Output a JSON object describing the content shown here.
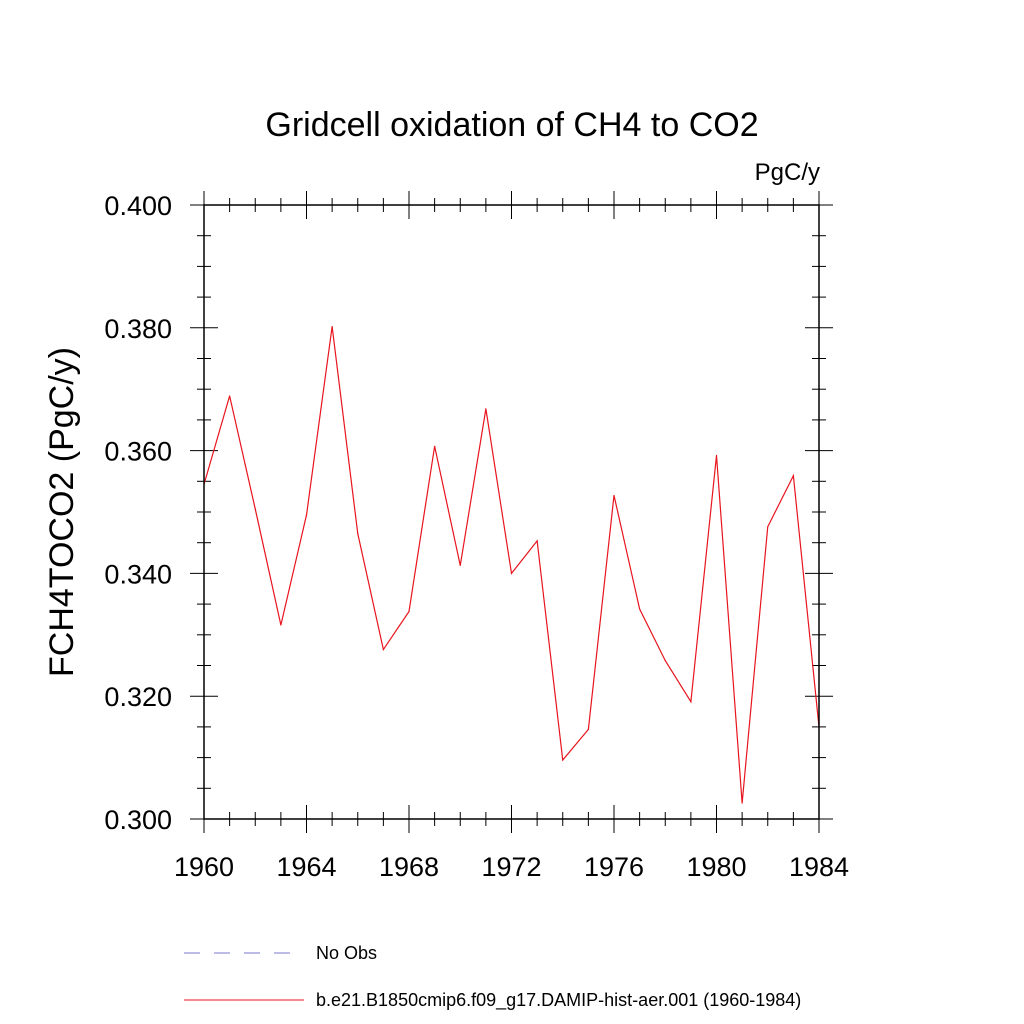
{
  "chart_data": {
    "type": "line",
    "title": "Gridcell oxidation of CH4 to CO2",
    "units_label": "PgC/y",
    "ylabel": "FCH4TOCO2  (PgC/y)",
    "xlabel": "",
    "xlim": [
      1960,
      1984
    ],
    "ylim": [
      0.3,
      0.4
    ],
    "x_ticks": [
      1960,
      1964,
      1968,
      1972,
      1976,
      1980,
      1984
    ],
    "x_tick_labels": [
      "1960",
      "1964",
      "1968",
      "1972",
      "1976",
      "1980",
      "1984"
    ],
    "y_ticks": [
      0.3,
      0.32,
      0.34,
      0.36,
      0.38,
      0.4
    ],
    "y_tick_labels": [
      "0.300",
      "0.320",
      "0.340",
      "0.360",
      "0.380",
      "0.400"
    ],
    "grid": false,
    "legend_position": "bottom",
    "series": [
      {
        "name": "b.e21.B1850cmip6.f09_g17.DAMIP-hist-aer.001 (1960-1984)",
        "color": "#e8141e",
        "style": "solid",
        "x": [
          1960,
          1961,
          1962,
          1963,
          1964,
          1965,
          1966,
          1967,
          1968,
          1969,
          1970,
          1971,
          1972,
          1973,
          1974,
          1975,
          1976,
          1977,
          1978,
          1979,
          1980,
          1981,
          1982,
          1983,
          1984
        ],
        "y": [
          0.3545,
          0.3689,
          0.3505,
          0.3316,
          0.3495,
          0.3802,
          0.3465,
          0.3276,
          0.3338,
          0.3607,
          0.3413,
          0.3668,
          0.34,
          0.3453,
          0.3096,
          0.3146,
          0.3527,
          0.3342,
          0.3258,
          0.3191,
          0.3592,
          0.3026,
          0.3476,
          0.3559,
          0.315
        ]
      }
    ],
    "legend": [
      {
        "label": "No Obs",
        "color": "#7777cc",
        "style": "dashed"
      },
      {
        "label": "b.e21.B1850cmip6.f09_g17.DAMIP-hist-aer.001 (1960-1984)",
        "color": "#e8141e",
        "style": "solid"
      }
    ]
  }
}
